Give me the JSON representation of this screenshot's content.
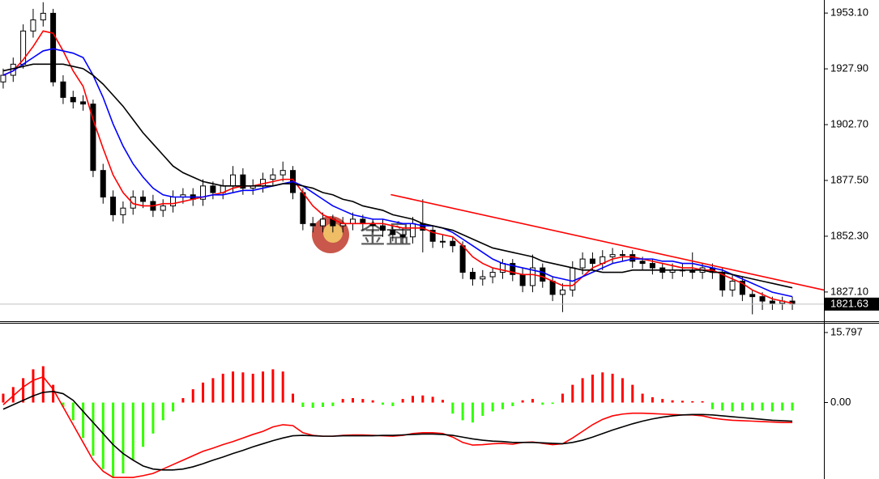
{
  "chart_data": [
    {
      "type": "candlestick",
      "xlim": [
        -0.32,
        82.16
      ],
      "ylim": [
        1813.9,
        1959.0
      ],
      "yticks": [
        {
          "value": 1953.1,
          "label": "1953.10"
        },
        {
          "value": 1927.9,
          "label": "1927.90"
        },
        {
          "value": 1902.7,
          "label": "1902.70"
        },
        {
          "value": 1877.5,
          "label": "1877.50"
        },
        {
          "value": 1852.3,
          "label": "1852.30"
        },
        {
          "value": 1827.1,
          "label": "1827.10"
        }
      ],
      "open": [
        1922,
        1925,
        1930,
        1945,
        1950,
        1953,
        1922,
        1915,
        1913,
        1912,
        1882,
        1870,
        1862,
        1865,
        1870,
        1868,
        1864,
        1866,
        1870,
        1871,
        1869,
        1875,
        1872,
        1875,
        1880,
        1874,
        1875,
        1878,
        1880,
        1882,
        1872,
        1858,
        1857,
        1860,
        1857,
        1858,
        1860,
        1858,
        1857,
        1855,
        1853,
        1852,
        1858,
        1855,
        1850,
        1850,
        1848,
        1836,
        1833,
        1834,
        1836,
        1840,
        1835,
        1830,
        1838,
        1832,
        1826,
        1828,
        1838,
        1842,
        1840,
        1843,
        1844,
        1844,
        1841,
        1840,
        1838,
        1836,
        1837,
        1837,
        1836,
        1838,
        1836,
        1828,
        1832,
        1826,
        1825,
        1823,
        1822,
        1823
      ],
      "high": [
        1928,
        1933,
        1948,
        1955,
        1958,
        1955,
        1925,
        1918,
        1916,
        1914,
        1885,
        1873,
        1868,
        1873,
        1873,
        1871,
        1869,
        1873,
        1874,
        1874,
        1878,
        1877,
        1878,
        1884,
        1883,
        1878,
        1881,
        1883,
        1886,
        1884,
        1874,
        1861,
        1863,
        1862,
        1861,
        1863,
        1862,
        1860,
        1860,
        1857,
        1856,
        1861,
        1869,
        1857,
        1853,
        1852,
        1850,
        1838,
        1837,
        1838,
        1842,
        1842,
        1838,
        1844,
        1840,
        1834,
        1831,
        1841,
        1845,
        1845,
        1846,
        1847,
        1846,
        1846,
        1843,
        1842,
        1840,
        1840,
        1840,
        1845,
        1840,
        1840,
        1838,
        1835,
        1834,
        1828,
        1827,
        1825,
        1825,
        1825
      ],
      "low": [
        1919,
        1922,
        1928,
        1942,
        1947,
        1920,
        1912,
        1910,
        1909,
        1879,
        1867,
        1859,
        1858,
        1862,
        1865,
        1861,
        1861,
        1863,
        1867,
        1866,
        1866,
        1869,
        1869,
        1872,
        1871,
        1871,
        1872,
        1875,
        1877,
        1869,
        1855,
        1854,
        1854,
        1854,
        1854,
        1855,
        1855,
        1854,
        1852,
        1850,
        1849,
        1849,
        1845,
        1847,
        1847,
        1845,
        1833,
        1830,
        1830,
        1831,
        1833,
        1832,
        1827,
        1827,
        1829,
        1823,
        1818,
        1825,
        1835,
        1837,
        1837,
        1840,
        1841,
        1838,
        1837,
        1835,
        1833,
        1833,
        1834,
        1833,
        1833,
        1833,
        1825,
        1825,
        1823,
        1817,
        1819,
        1819,
        1819,
        1819
      ],
      "close": [
        1925,
        1930,
        1945,
        1950,
        1953,
        1922,
        1915,
        1913,
        1912,
        1882,
        1870,
        1862,
        1865,
        1870,
        1868,
        1864,
        1866,
        1870,
        1871,
        1869,
        1875,
        1872,
        1875,
        1880,
        1874,
        1875,
        1878,
        1880,
        1882,
        1872,
        1858,
        1857,
        1860,
        1857,
        1858,
        1860,
        1858,
        1857,
        1855,
        1853,
        1852,
        1858,
        1855,
        1850,
        1850,
        1848,
        1836,
        1833,
        1834,
        1836,
        1840,
        1835,
        1830,
        1838,
        1832,
        1826,
        1828,
        1838,
        1842,
        1840,
        1843,
        1844,
        1844,
        1841,
        1840,
        1838,
        1836,
        1837,
        1837,
        1836,
        1838,
        1836,
        1828,
        1832,
        1826,
        1825,
        1823,
        1822,
        1823,
        1821.63
      ],
      "series": [
        {
          "color": "#ff0000",
          "values": [
            1925,
            1927,
            1932,
            1938,
            1945,
            1944,
            1936,
            1927,
            1920,
            1905,
            1892,
            1880,
            1872,
            1867,
            1866,
            1866,
            1867,
            1867,
            1868,
            1869,
            1870,
            1871,
            1872,
            1874,
            1875,
            1875,
            1876,
            1877,
            1878,
            1878,
            1872,
            1866,
            1862,
            1860,
            1858,
            1858,
            1858,
            1858,
            1858,
            1857,
            1856,
            1856,
            1856,
            1854,
            1853,
            1852,
            1848,
            1843,
            1840,
            1838,
            1837,
            1836,
            1835,
            1835,
            1834,
            1832,
            1830,
            1830,
            1834,
            1838,
            1840,
            1842,
            1843,
            1843,
            1842,
            1841,
            1840,
            1839,
            1838,
            1838,
            1837,
            1837,
            1835,
            1833,
            1831,
            1828,
            1826,
            1824,
            1823,
            1822
          ]
        },
        {
          "color": "#0000ff",
          "values": [
            1925,
            1927,
            1930,
            1933,
            1936,
            1937,
            1936,
            1935,
            1933,
            1925,
            1915,
            1903,
            1893,
            1885,
            1879,
            1874,
            1871,
            1870,
            1870,
            1870,
            1870,
            1871,
            1871,
            1872,
            1873,
            1873,
            1874,
            1875,
            1876,
            1877,
            1875,
            1872,
            1869,
            1866,
            1864,
            1862,
            1861,
            1860,
            1860,
            1859,
            1858,
            1858,
            1857,
            1857,
            1856,
            1854,
            1851,
            1848,
            1845,
            1842,
            1840,
            1839,
            1838,
            1837,
            1836,
            1834,
            1833,
            1832,
            1834,
            1836,
            1838,
            1840,
            1841,
            1842,
            1842,
            1842,
            1841,
            1841,
            1840,
            1840,
            1839,
            1838,
            1837,
            1835,
            1833,
            1831,
            1829,
            1827,
            1826,
            1825
          ]
        },
        {
          "color": "#000000",
          "values": [
            1927,
            1928,
            1929,
            1930,
            1930,
            1930,
            1930,
            1929,
            1928,
            1925,
            1921,
            1916,
            1911,
            1905,
            1899,
            1894,
            1889,
            1884,
            1881,
            1879,
            1877,
            1876,
            1875,
            1875,
            1875,
            1875,
            1875,
            1875,
            1876,
            1876,
            1875,
            1874,
            1872,
            1871,
            1869,
            1868,
            1866,
            1865,
            1864,
            1862,
            1861,
            1860,
            1858,
            1857,
            1856,
            1855,
            1853,
            1851,
            1849,
            1847,
            1846,
            1845,
            1844,
            1843,
            1841,
            1840,
            1839,
            1838,
            1837,
            1837,
            1836,
            1836,
            1836,
            1837,
            1837,
            1837,
            1837,
            1837,
            1837,
            1837,
            1837,
            1836,
            1836,
            1835,
            1834,
            1833,
            1832,
            1831,
            1830,
            1829
          ]
        }
      ],
      "trendline": {
        "color": "#ff0000",
        "x": [
          38.8,
          82.16
        ],
        "y": [
          1871.1,
          1828.0
        ]
      },
      "last_price": 1821.63,
      "watermark": "金盘"
    },
    {
      "type": "macd",
      "xlim": [
        -0.32,
        82.16
      ],
      "ylim": [
        -17.25,
        17.98
      ],
      "yticks": [
        15.797,
        {
          "value": 0,
          "label": "0.00"
        }
      ],
      "positive_color": "#ff0000",
      "negative_color": "#33ff00",
      "values": [
        2,
        3.5,
        5.5,
        7.5,
        8.2,
        4,
        -1,
        -4,
        -8,
        -12,
        -15,
        -17,
        -16,
        -13,
        -10,
        -7,
        -4,
        -2,
        1,
        3,
        4.5,
        5.5,
        6.5,
        7,
        6.8,
        6.5,
        7,
        7.5,
        7,
        2,
        -1,
        -1.2,
        -1,
        -0.8,
        0.8,
        1,
        0.8,
        0.5,
        -0.5,
        -0.8,
        0.8,
        1.5,
        1.6,
        1.3,
        0.6,
        -2.5,
        -4,
        -4.5,
        -3,
        -2,
        -1.5,
        -0.8,
        0.5,
        0.8,
        -0.5,
        -0.3,
        2,
        4,
        5.5,
        6.3,
        6.8,
        6.5,
        5.5,
        4,
        2,
        1.2,
        0.8,
        0.5,
        0.4,
        0.3,
        0.3,
        -1.5,
        -1.8,
        -2,
        -1.8,
        -1.8,
        -1.8,
        -2,
        -1.8,
        -1.8
      ],
      "series": [
        {
          "color": "#ff0000",
          "values": [
            -0.5,
            1.5,
            3.5,
            5,
            5.8,
            3,
            -1,
            -5,
            -9,
            -13,
            -15.5,
            -16.9,
            -16.9,
            -16.9,
            -16.5,
            -16,
            -15,
            -14,
            -13,
            -12,
            -11,
            -10.3,
            -9.5,
            -8.8,
            -8,
            -7.2,
            -6.5,
            -5.5,
            -5,
            -5.2,
            -6.8,
            -7.4,
            -7.6,
            -7.6,
            -7.4,
            -7.3,
            -7.3,
            -7.4,
            -7.5,
            -7.6,
            -7.4,
            -7.0,
            -6.8,
            -6.8,
            -7.0,
            -7.8,
            -9.0,
            -9.6,
            -9.5,
            -9.3,
            -9.2,
            -9.4,
            -9.0,
            -8.9,
            -9.2,
            -9.5,
            -9.3,
            -8,
            -6.5,
            -5,
            -3.8,
            -3,
            -2.6,
            -2.4,
            -2.4,
            -2.5,
            -2.6,
            -2.7,
            -2.8,
            -2.8,
            -3,
            -3.5,
            -3.8,
            -4.0,
            -4.1,
            -4.2,
            -4.3,
            -4.4,
            -4.5,
            -4.5
          ]
        },
        {
          "color": "#000000",
          "values": [
            -1.5,
            -0.5,
            0.5,
            1.5,
            2.3,
            2.5,
            2,
            0.5,
            -2,
            -4.5,
            -7,
            -9.5,
            -11.5,
            -13,
            -14.3,
            -15,
            -15.2,
            -15.2,
            -15,
            -14.5,
            -13.8,
            -13,
            -12.3,
            -11.5,
            -10.8,
            -10,
            -9.3,
            -8.6,
            -8,
            -7.5,
            -7.4,
            -7.5,
            -7.6,
            -7.6,
            -7.5,
            -7.5,
            -7.5,
            -7.5,
            -7.4,
            -7.4,
            -7.3,
            -7.2,
            -7.1,
            -7.1,
            -7.2,
            -7.4,
            -7.8,
            -8.2,
            -8.5,
            -8.7,
            -8.8,
            -9.0,
            -9.0,
            -9.0,
            -9.1,
            -9.2,
            -9.3,
            -9,
            -8.5,
            -7.8,
            -7,
            -6.2,
            -5.5,
            -4.8,
            -4.2,
            -3.7,
            -3.3,
            -3.0,
            -2.8,
            -2.7,
            -2.7,
            -2.8,
            -3,
            -3.2,
            -3.4,
            -3.6,
            -3.8,
            -4,
            -4.1,
            -4.2
          ]
        }
      ]
    }
  ]
}
